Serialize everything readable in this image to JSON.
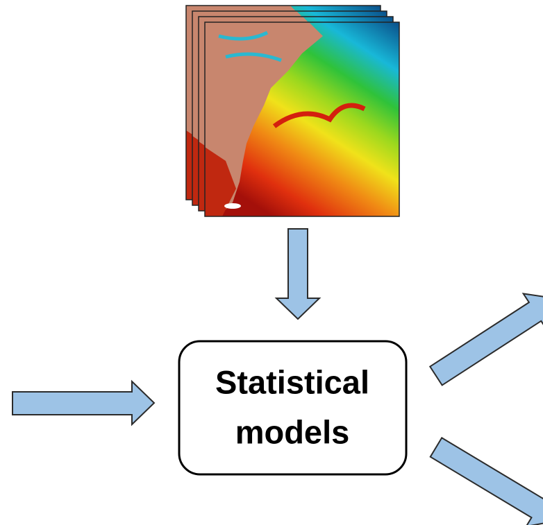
{
  "box": {
    "lines": [
      "Statistical",
      "models"
    ]
  }
}
